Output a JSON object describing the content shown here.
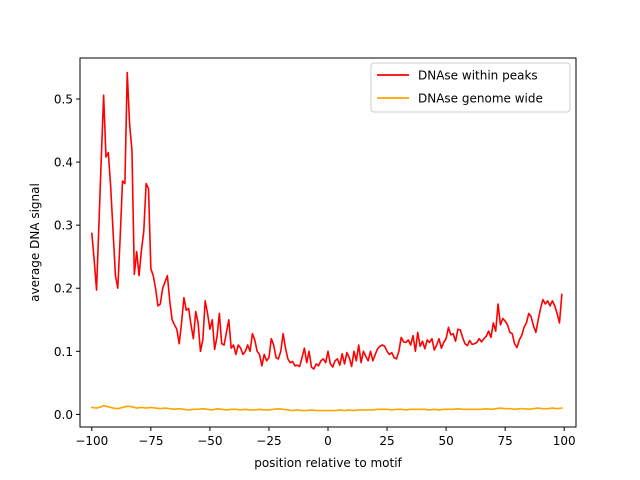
{
  "chart_data": {
    "type": "line",
    "title": "",
    "xlabel": "position relative to motif",
    "ylabel": "average DNA signal",
    "xlim": [
      -105,
      105
    ],
    "ylim": [
      -0.02,
      0.565
    ],
    "xticks": [
      -100,
      -75,
      -50,
      -25,
      0,
      25,
      50,
      75,
      100
    ],
    "yticks": [
      0.0,
      0.1,
      0.2,
      0.3,
      0.4,
      0.5
    ],
    "xtick_labels": [
      "−100",
      "−75",
      "−50",
      "−25",
      "0",
      "25",
      "50",
      "75",
      "100"
    ],
    "ytick_labels": [
      "0.0",
      "0.1",
      "0.2",
      "0.3",
      "0.4",
      "0.5"
    ],
    "grid": false,
    "legend_position": "top-right",
    "series": [
      {
        "name": "DNAse within peaks",
        "color": "#ff0000",
        "points": [
          [
            -100,
            0.287
          ],
          [
            -99,
            0.245
          ],
          [
            -98,
            0.197
          ],
          [
            -97,
            0.3
          ],
          [
            -96,
            0.405
          ],
          [
            -95,
            0.506
          ],
          [
            -94,
            0.408
          ],
          [
            -93,
            0.415
          ],
          [
            -92,
            0.36
          ],
          [
            -91,
            0.29
          ],
          [
            -90,
            0.22
          ],
          [
            -89,
            0.2
          ],
          [
            -88,
            0.28
          ],
          [
            -87,
            0.37
          ],
          [
            -86,
            0.366
          ],
          [
            -85,
            0.542
          ],
          [
            -84,
            0.46
          ],
          [
            -83,
            0.418
          ],
          [
            -82,
            0.222
          ],
          [
            -81,
            0.258
          ],
          [
            -80,
            0.22
          ],
          [
            -79,
            0.26
          ],
          [
            -78,
            0.29
          ],
          [
            -77,
            0.366
          ],
          [
            -76,
            0.358
          ],
          [
            -75,
            0.231
          ],
          [
            -74,
            0.22
          ],
          [
            -73,
            0.2
          ],
          [
            -72,
            0.172
          ],
          [
            -71,
            0.175
          ],
          [
            -70,
            0.2
          ],
          [
            -69,
            0.21
          ],
          [
            -68,
            0.22
          ],
          [
            -67,
            0.18
          ],
          [
            -66,
            0.15
          ],
          [
            -65,
            0.142
          ],
          [
            -64,
            0.135
          ],
          [
            -63,
            0.112
          ],
          [
            -62,
            0.145
          ],
          [
            -61,
            0.185
          ],
          [
            -60,
            0.165
          ],
          [
            -59,
            0.168
          ],
          [
            -58,
            0.142
          ],
          [
            -57,
            0.12
          ],
          [
            -56,
            0.163
          ],
          [
            -55,
            0.145
          ],
          [
            -54,
            0.1
          ],
          [
            -53,
            0.118
          ],
          [
            -52,
            0.18
          ],
          [
            -51,
            0.16
          ],
          [
            -50,
            0.135
          ],
          [
            -49,
            0.15
          ],
          [
            -48,
            0.103
          ],
          [
            -47,
            0.123
          ],
          [
            -46,
            0.16
          ],
          [
            -45,
            0.112
          ],
          [
            -44,
            0.11
          ],
          [
            -43,
            0.13
          ],
          [
            -42,
            0.15
          ],
          [
            -41,
            0.105
          ],
          [
            -40,
            0.11
          ],
          [
            -39,
            0.095
          ],
          [
            -38,
            0.11
          ],
          [
            -37,
            0.105
          ],
          [
            -36,
            0.095
          ],
          [
            -35,
            0.1
          ],
          [
            -34,
            0.11
          ],
          [
            -33,
            0.1
          ],
          [
            -32,
            0.128
          ],
          [
            -31,
            0.118
          ],
          [
            -30,
            0.1
          ],
          [
            -29,
            0.095
          ],
          [
            -28,
            0.077
          ],
          [
            -27,
            0.095
          ],
          [
            -26,
            0.085
          ],
          [
            -25,
            0.09
          ],
          [
            -24,
            0.12
          ],
          [
            -23,
            0.11
          ],
          [
            -22,
            0.09
          ],
          [
            -21,
            0.088
          ],
          [
            -20,
            0.1
          ],
          [
            -19,
            0.128
          ],
          [
            -18,
            0.105
          ],
          [
            -17,
            0.088
          ],
          [
            -16,
            0.082
          ],
          [
            -15,
            0.084
          ],
          [
            -14,
            0.077
          ],
          [
            -13,
            0.078
          ],
          [
            -12,
            0.076
          ],
          [
            -11,
            0.09
          ],
          [
            -10,
            0.105
          ],
          [
            -9,
            0.082
          ],
          [
            -8,
            0.1
          ],
          [
            -7,
            0.075
          ],
          [
            -6,
            0.072
          ],
          [
            -5,
            0.08
          ],
          [
            -4,
            0.077
          ],
          [
            -3,
            0.085
          ],
          [
            -2,
            0.088
          ],
          [
            -1,
            0.082
          ],
          [
            0,
            0.1
          ],
          [
            1,
            0.08
          ],
          [
            2,
            0.075
          ],
          [
            3,
            0.085
          ],
          [
            4,
            0.088
          ],
          [
            5,
            0.078
          ],
          [
            6,
            0.096
          ],
          [
            7,
            0.08
          ],
          [
            8,
            0.098
          ],
          [
            9,
            0.09
          ],
          [
            10,
            0.076
          ],
          [
            11,
            0.1
          ],
          [
            12,
            0.085
          ],
          [
            13,
            0.11
          ],
          [
            14,
            0.082
          ],
          [
            15,
            0.1
          ],
          [
            16,
            0.092
          ],
          [
            17,
            0.085
          ],
          [
            18,
            0.1
          ],
          [
            19,
            0.085
          ],
          [
            20,
            0.095
          ],
          [
            21,
            0.104
          ],
          [
            22,
            0.108
          ],
          [
            23,
            0.11
          ],
          [
            24,
            0.108
          ],
          [
            25,
            0.1
          ],
          [
            26,
            0.095
          ],
          [
            27,
            0.098
          ],
          [
            28,
            0.09
          ],
          [
            29,
            0.088
          ],
          [
            30,
            0.1
          ],
          [
            31,
            0.122
          ],
          [
            32,
            0.115
          ],
          [
            33,
            0.114
          ],
          [
            34,
            0.118
          ],
          [
            35,
            0.11
          ],
          [
            36,
            0.125
          ],
          [
            37,
            0.1
          ],
          [
            38,
            0.13
          ],
          [
            39,
            0.108
          ],
          [
            40,
            0.116
          ],
          [
            41,
            0.104
          ],
          [
            42,
            0.118
          ],
          [
            43,
            0.114
          ],
          [
            44,
            0.12
          ],
          [
            45,
            0.102
          ],
          [
            46,
            0.11
          ],
          [
            47,
            0.12
          ],
          [
            48,
            0.105
          ],
          [
            49,
            0.114
          ],
          [
            50,
            0.12
          ],
          [
            51,
            0.138
          ],
          [
            52,
            0.126
          ],
          [
            53,
            0.128
          ],
          [
            54,
            0.116
          ],
          [
            55,
            0.135
          ],
          [
            56,
            0.134
          ],
          [
            57,
            0.122
          ],
          [
            58,
            0.112
          ],
          [
            59,
            0.109
          ],
          [
            60,
            0.117
          ],
          [
            61,
            0.111
          ],
          [
            62,
            0.112
          ],
          [
            63,
            0.114
          ],
          [
            64,
            0.12
          ],
          [
            65,
            0.115
          ],
          [
            66,
            0.12
          ],
          [
            67,
            0.124
          ],
          [
            68,
            0.132
          ],
          [
            69,
            0.122
          ],
          [
            70,
            0.145
          ],
          [
            71,
            0.132
          ],
          [
            72,
            0.175
          ],
          [
            73,
            0.142
          ],
          [
            74,
            0.152
          ],
          [
            75,
            0.148
          ],
          [
            76,
            0.142
          ],
          [
            77,
            0.13
          ],
          [
            78,
            0.128
          ],
          [
            79,
            0.112
          ],
          [
            80,
            0.106
          ],
          [
            81,
            0.118
          ],
          [
            82,
            0.125
          ],
          [
            83,
            0.138
          ],
          [
            84,
            0.145
          ],
          [
            85,
            0.16
          ],
          [
            86,
            0.155
          ],
          [
            87,
            0.14
          ],
          [
            88,
            0.13
          ],
          [
            89,
            0.15
          ],
          [
            90,
            0.168
          ],
          [
            91,
            0.182
          ],
          [
            92,
            0.175
          ],
          [
            93,
            0.18
          ],
          [
            94,
            0.172
          ],
          [
            95,
            0.18
          ],
          [
            96,
            0.172
          ],
          [
            97,
            0.16
          ],
          [
            98,
            0.145
          ],
          [
            99,
            0.19
          ]
        ]
      },
      {
        "name": "DNAse genome wide",
        "color": "#ffa500",
        "points": [
          [
            -100,
            0.011
          ],
          [
            -98,
            0.01
          ],
          [
            -96,
            0.012
          ],
          [
            -95,
            0.014
          ],
          [
            -93,
            0.012
          ],
          [
            -91,
            0.01
          ],
          [
            -89,
            0.009
          ],
          [
            -87,
            0.011
          ],
          [
            -85,
            0.013
          ],
          [
            -83,
            0.012
          ],
          [
            -81,
            0.01
          ],
          [
            -79,
            0.011
          ],
          [
            -77,
            0.01
          ],
          [
            -75,
            0.011
          ],
          [
            -73,
            0.01
          ],
          [
            -71,
            0.009
          ],
          [
            -69,
            0.01
          ],
          [
            -67,
            0.009
          ],
          [
            -65,
            0.008
          ],
          [
            -63,
            0.009
          ],
          [
            -61,
            0.008
          ],
          [
            -59,
            0.007
          ],
          [
            -57,
            0.008
          ],
          [
            -55,
            0.008
          ],
          [
            -53,
            0.009
          ],
          [
            -51,
            0.008
          ],
          [
            -49,
            0.007
          ],
          [
            -47,
            0.009
          ],
          [
            -45,
            0.008
          ],
          [
            -43,
            0.007
          ],
          [
            -41,
            0.008
          ],
          [
            -39,
            0.008
          ],
          [
            -37,
            0.007
          ],
          [
            -35,
            0.008
          ],
          [
            -33,
            0.007
          ],
          [
            -31,
            0.007
          ],
          [
            -29,
            0.008
          ],
          [
            -27,
            0.007
          ],
          [
            -25,
            0.007
          ],
          [
            -23,
            0.008
          ],
          [
            -21,
            0.009
          ],
          [
            -19,
            0.008
          ],
          [
            -17,
            0.007
          ],
          [
            -15,
            0.006
          ],
          [
            -13,
            0.007
          ],
          [
            -11,
            0.006
          ],
          [
            -9,
            0.006
          ],
          [
            -7,
            0.007
          ],
          [
            -5,
            0.006
          ],
          [
            -3,
            0.006
          ],
          [
            -1,
            0.006
          ],
          [
            1,
            0.006
          ],
          [
            3,
            0.006
          ],
          [
            5,
            0.007
          ],
          [
            7,
            0.006
          ],
          [
            9,
            0.007
          ],
          [
            11,
            0.006
          ],
          [
            13,
            0.007
          ],
          [
            15,
            0.007
          ],
          [
            17,
            0.007
          ],
          [
            19,
            0.007
          ],
          [
            21,
            0.008
          ],
          [
            23,
            0.008
          ],
          [
            25,
            0.008
          ],
          [
            27,
            0.007
          ],
          [
            29,
            0.008
          ],
          [
            31,
            0.008
          ],
          [
            33,
            0.007
          ],
          [
            35,
            0.008
          ],
          [
            37,
            0.008
          ],
          [
            39,
            0.008
          ],
          [
            41,
            0.008
          ],
          [
            43,
            0.007
          ],
          [
            45,
            0.008
          ],
          [
            47,
            0.007
          ],
          [
            49,
            0.008
          ],
          [
            51,
            0.008
          ],
          [
            53,
            0.008
          ],
          [
            55,
            0.009
          ],
          [
            57,
            0.008
          ],
          [
            59,
            0.008
          ],
          [
            61,
            0.008
          ],
          [
            63,
            0.008
          ],
          [
            65,
            0.008
          ],
          [
            67,
            0.009
          ],
          [
            69,
            0.008
          ],
          [
            71,
            0.009
          ],
          [
            73,
            0.01
          ],
          [
            75,
            0.009
          ],
          [
            77,
            0.009
          ],
          [
            79,
            0.008
          ],
          [
            81,
            0.009
          ],
          [
            83,
            0.009
          ],
          [
            85,
            0.008
          ],
          [
            87,
            0.009
          ],
          [
            89,
            0.01
          ],
          [
            91,
            0.009
          ],
          [
            93,
            0.009
          ],
          [
            95,
            0.01
          ],
          [
            97,
            0.009
          ],
          [
            99,
            0.01
          ]
        ]
      }
    ]
  }
}
